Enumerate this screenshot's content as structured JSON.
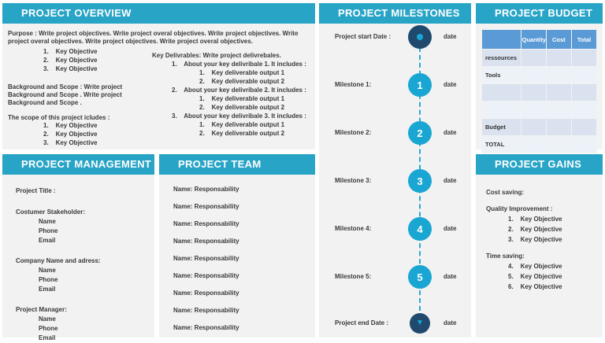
{
  "colors": {
    "panel_header": "#28a4c6",
    "panel_background": "#f2f2f2",
    "milestone_circle": "#1aa6d3",
    "start_end_circle": "#1f4a6e",
    "table_header": "#5b9bd5",
    "table_band_dark": "#d9e2ee",
    "table_band_light": "#edf2f8"
  },
  "overview": {
    "title": "PROJECT OVERVIEW",
    "purpose": "Purpose : Write project objectives. Write project overal objectives. Write project objectives. Write project overal objectives. Write project objectives. Write project overal objectives.",
    "objectives": [
      "1.    Key Objective",
      "2.    Key Objective",
      "3.    Key Objective"
    ],
    "background": "Background and Scope : Write project Background and Scope . Write project Background and Scope .",
    "scope_heading": "The scope of this project icludes :",
    "scope_items": [
      "1.    Key Objective",
      "2.    Key Objective",
      "3.    Key Objective"
    ],
    "deliverables_heading": "Key Delivrables: Write project delivrebales.",
    "deliverables": [
      {
        "item": "1.    About your key delivribale 1. It includes :",
        "subs": [
          "1.    Key deliverable output 1",
          "2.    Key deliverable output 2"
        ]
      },
      {
        "item": "2.    About your key delivribale 2. It includes :",
        "subs": [
          "1.    Key deliverable output 1",
          "2.    Key deliverable output 2"
        ]
      },
      {
        "item": "3.    About your key delivribale 3. It includes :",
        "subs": [
          "1.    Key deliverable output 1",
          "2.    Key deliverable output 2"
        ]
      }
    ]
  },
  "management": {
    "title": "PROJECT MANAGEMENT",
    "project_title_label": "Project Title :",
    "groups": [
      {
        "heading": "Costumer Stakeholder:",
        "fields": [
          "Name",
          "Phone",
          "Email"
        ]
      },
      {
        "heading": "Company Name and adress:",
        "fields": [
          "Name",
          "Phone",
          "Email"
        ]
      },
      {
        "heading": "Project Manager:",
        "fields": [
          "Name",
          "Phone",
          "Email"
        ]
      }
    ]
  },
  "team": {
    "title": "PROJECT TEAM",
    "members": [
      "Name: Responsability",
      "Name: Responsability",
      "Name: Responsability",
      "Name: Responsability",
      "Name: Responsability",
      "Name: Responsability",
      "Name: Responsability",
      "Name: Responsability",
      "Name: Responsability"
    ]
  },
  "milestones": {
    "title": "PROJECT MILESTONES",
    "rows": [
      {
        "label": "Project start Date :",
        "node": "start",
        "date": "date"
      },
      {
        "label": "Milestone 1:",
        "node": "1",
        "date": "date"
      },
      {
        "label": "Milestone 2:",
        "node": "2",
        "date": "date"
      },
      {
        "label": "Milestone 3:",
        "node": "3",
        "date": "date"
      },
      {
        "label": "Milestone 4:",
        "node": "4",
        "date": "date"
      },
      {
        "label": "Milestone 5:",
        "node": "5",
        "date": "date"
      },
      {
        "label": "Project end Date :",
        "node": "end",
        "date": "date"
      }
    ]
  },
  "budget": {
    "title": "PROJECT BUDGET",
    "columns": [
      "",
      "Quantity",
      "Cost",
      "Total"
    ],
    "rows": [
      {
        "label": "ressources",
        "cells": [
          "",
          "",
          ""
        ]
      },
      {
        "label": "Tools",
        "cells": [
          "",
          "",
          ""
        ]
      },
      {
        "label": "",
        "cells": [
          "",
          "",
          ""
        ]
      },
      {
        "label": "",
        "cells": [
          "",
          "",
          ""
        ]
      },
      {
        "label": "Budget",
        "cells": [
          "",
          "",
          ""
        ]
      },
      {
        "label": "TOTAL",
        "cells": [
          "",
          "",
          ""
        ]
      }
    ]
  },
  "gains": {
    "title": "PROJECT GAINS",
    "cost_saving": "Cost saving:",
    "quality_heading": "Quality Improvement :",
    "quality_items": [
      "1.    Key Objective",
      "2.    Key Objective",
      "3.    Key Objective"
    ],
    "time_heading": "Time saving:",
    "time_items": [
      "4.    Key Objective",
      "5.    Key Objective",
      "6.    Key Objective"
    ]
  }
}
